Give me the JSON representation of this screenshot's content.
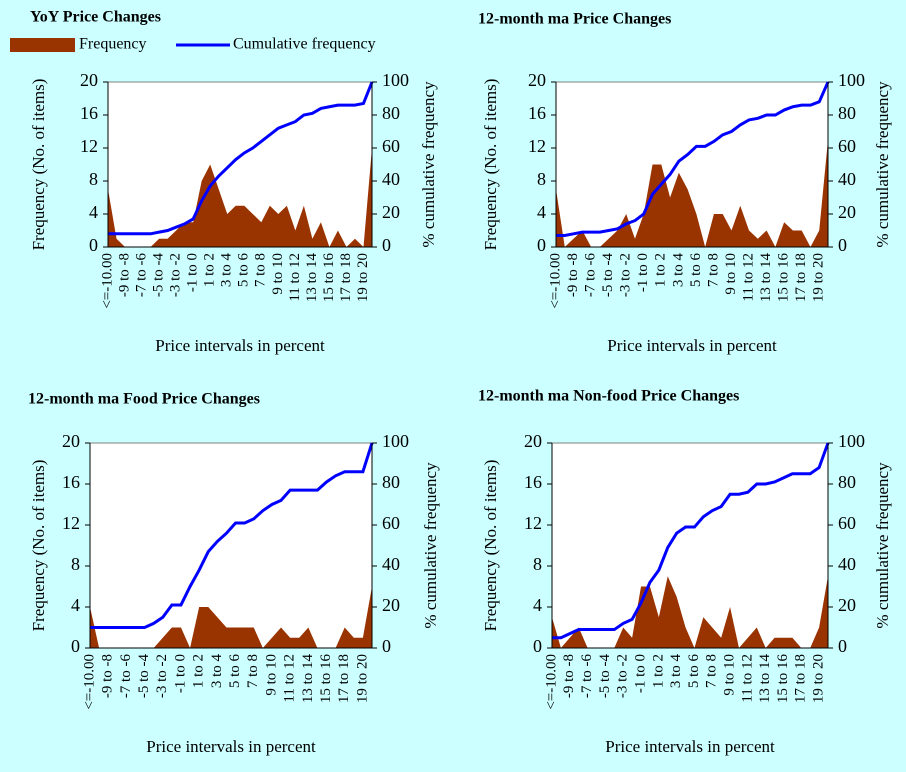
{
  "chart_data": [
    {
      "type": "combo",
      "title": "YoY Price Changes",
      "legend": true,
      "xlabel": "Price intervals in percent",
      "ylabel": "Frequency (No. of items)",
      "y2label": "% cumulative frequency",
      "categories": [
        "<=-10.00",
        null,
        "-9 to -8",
        null,
        "-7 to -6",
        null,
        "-5 to -4",
        null,
        "-3 to -2",
        null,
        "-1 to 0",
        null,
        "1 to 2",
        null,
        "3 to 4",
        null,
        "5 to 6",
        null,
        "7 to 8",
        null,
        "9 to 10",
        null,
        "11 to 12",
        null,
        "13 to 14",
        null,
        "15 to 16",
        null,
        "17 to 18",
        null,
        "19 to 20",
        null
      ],
      "series": [
        {
          "name": "Frequency",
          "type": "area",
          "color": "#993300",
          "values": [
            7,
            1,
            0,
            0,
            0,
            0,
            1,
            1,
            2,
            3,
            3,
            8,
            10,
            7,
            4,
            5,
            5,
            4,
            3,
            5,
            4,
            5,
            2,
            5,
            1,
            3,
            0,
            2,
            0,
            1,
            0,
            12
          ]
        },
        {
          "name": "Cumulative frequency",
          "type": "line",
          "axis": "y2",
          "color": "#0000ff",
          "values": [
            8,
            8,
            8,
            8,
            8,
            8,
            9,
            10,
            12,
            14,
            17,
            28,
            37,
            43,
            48,
            53,
            57,
            60,
            64,
            68,
            72,
            74,
            76,
            80,
            81,
            84,
            85,
            86,
            86,
            86,
            87,
            100
          ]
        }
      ],
      "ylim": [
        0,
        20
      ],
      "yticks": [
        0,
        4,
        8,
        12,
        16,
        20
      ],
      "y2lim": [
        0,
        100
      ],
      "y2ticks": [
        0,
        20,
        40,
        60,
        80,
        100
      ]
    },
    {
      "type": "combo",
      "title": "12-month ma Price Changes",
      "legend": false,
      "xlabel": "Price intervals in percent",
      "ylabel": "Frequency (No. of items)",
      "y2label": "% cumulative frequency",
      "categories": [
        "<=-10.00",
        null,
        "-9 to -8",
        null,
        "-7 to -6",
        null,
        "-5 to -4",
        null,
        "-3 to -2",
        null,
        "-1 to 0",
        null,
        "1 to 2",
        null,
        "3 to 4",
        null,
        "5 to 6",
        null,
        "7 to 8",
        null,
        "9 to 10",
        null,
        "11 to 12",
        null,
        "13 to 14",
        null,
        "15 to 16",
        null,
        "17 to 18",
        null,
        "19 to 20",
        null
      ],
      "series": [
        {
          "name": "Frequency",
          "type": "area",
          "color": "#993300",
          "values": [
            7,
            0,
            1,
            2,
            0,
            0,
            1,
            2,
            4,
            1,
            4,
            10,
            10,
            6,
            9,
            7,
            4,
            0,
            4,
            4,
            2,
            5,
            2,
            1,
            2,
            0,
            3,
            2,
            2,
            0,
            2,
            13
          ]
        },
        {
          "name": "Cumulative frequency",
          "type": "line",
          "axis": "y2",
          "color": "#0000ff",
          "values": [
            7,
            7,
            8,
            9,
            9,
            9,
            10,
            11,
            14,
            16,
            20,
            32,
            38,
            44,
            52,
            56,
            61,
            61,
            64,
            68,
            70,
            74,
            77,
            78,
            80,
            80,
            83,
            85,
            86,
            86,
            88,
            100
          ]
        }
      ],
      "ylim": [
        0,
        20
      ],
      "yticks": [
        0,
        4,
        8,
        12,
        16,
        20
      ],
      "y2lim": [
        0,
        100
      ],
      "y2ticks": [
        0,
        20,
        40,
        60,
        80,
        100
      ]
    },
    {
      "type": "combo",
      "title": "12-month ma Food Price Changes",
      "legend": false,
      "xlabel": "Price intervals in percent",
      "ylabel": "Frequency (No. of items)",
      "y2label": "% cumulative frequency",
      "categories": [
        "<=-10.00",
        null,
        "-9 to -8",
        null,
        "-7 to -6",
        null,
        "-5 to -4",
        null,
        "-3 to -2",
        null,
        "-1 to 0",
        null,
        "1 to 2",
        null,
        "3 to 4",
        null,
        "5 to 6",
        null,
        "7 to 8",
        null,
        "9 to 10",
        null,
        "11 to 12",
        null,
        "13 to 14",
        null,
        "15 to 16",
        null,
        "17 to 18",
        null,
        "19 to 20",
        null
      ],
      "series": [
        {
          "name": "Frequency",
          "type": "area",
          "color": "#993300",
          "values": [
            4,
            0,
            0,
            0,
            0,
            0,
            0,
            0,
            1,
            2,
            2,
            0,
            4,
            4,
            3,
            2,
            2,
            2,
            2,
            0,
            1,
            2,
            1,
            1,
            2,
            0,
            0,
            0,
            2,
            1,
            1,
            6
          ]
        },
        {
          "name": "Cumulative frequency",
          "type": "line",
          "axis": "y2",
          "color": "#0000ff",
          "values": [
            10,
            10,
            10,
            10,
            10,
            10,
            10,
            12,
            15,
            21,
            21,
            30,
            38,
            47,
            52,
            56,
            61,
            61,
            63,
            67,
            70,
            72,
            77,
            77,
            77,
            77,
            81,
            84,
            86,
            86,
            86,
            100
          ]
        }
      ],
      "ylim": [
        0,
        20
      ],
      "yticks": [
        0,
        4,
        8,
        12,
        16,
        20
      ],
      "y2lim": [
        0,
        100
      ],
      "y2ticks": [
        0,
        20,
        40,
        60,
        80,
        100
      ]
    },
    {
      "type": "combo",
      "title": "12-month ma Non-food Price Changes",
      "legend": false,
      "xlabel": "Price intervals in percent",
      "ylabel": "Frequency (No. of items)",
      "y2label": "% cumulative frequency",
      "categories": [
        "<=-10.00",
        null,
        "-9 to -8",
        null,
        "-7 to -6",
        null,
        "-5 to -4",
        null,
        "-3 to -2",
        null,
        "-1 to 0",
        null,
        "1 to 2",
        null,
        "3 to 4",
        null,
        "5 to 6",
        null,
        "7 to 8",
        null,
        "9 to 10",
        null,
        "11 to 12",
        null,
        "13 to 14",
        null,
        "15 to 16",
        null,
        "17 to 18",
        null,
        "19 to 20",
        null
      ],
      "series": [
        {
          "name": "Frequency",
          "type": "area",
          "color": "#993300",
          "values": [
            3,
            0,
            1,
            2,
            0,
            0,
            0,
            0,
            2,
            1,
            6,
            6,
            3,
            7,
            5,
            2,
            0,
            3,
            2,
            1,
            4,
            0,
            1,
            2,
            0,
            1,
            1,
            1,
            0,
            0,
            2,
            7
          ]
        },
        {
          "name": "Cumulative frequency",
          "type": "line",
          "axis": "y2",
          "color": "#0000ff",
          "values": [
            5,
            5,
            7,
            9,
            9,
            9,
            9,
            9,
            12,
            14,
            22,
            32,
            38,
            49,
            56,
            59,
            59,
            64,
            67,
            69,
            75,
            75,
            76,
            80,
            80,
            81,
            83,
            85,
            85,
            85,
            88,
            100
          ]
        }
      ],
      "ylim": [
        0,
        20
      ],
      "yticks": [
        0,
        4,
        8,
        12,
        16,
        20
      ],
      "y2lim": [
        0,
        100
      ],
      "y2ticks": [
        0,
        20,
        40,
        60,
        80,
        100
      ]
    }
  ]
}
